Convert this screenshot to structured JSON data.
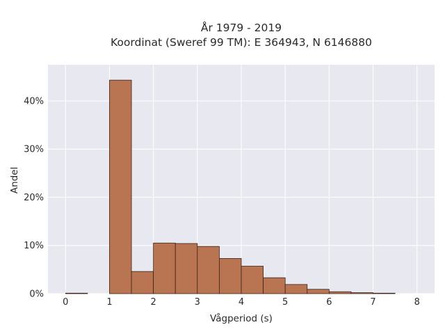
{
  "chart_data": {
    "type": "bar",
    "title_lines": [
      "År 1979 - 2019",
      "Koordinat (Sweref 99 TM): E 364943, N 6146880"
    ],
    "xlabel": "Vågperiod (s)",
    "ylabel": "Andel",
    "xlim": [
      -0.4,
      8.4
    ],
    "ylim": [
      0,
      0.475
    ],
    "x_ticks": [
      0,
      1,
      2,
      3,
      4,
      5,
      6,
      7,
      8
    ],
    "y_ticks": [
      0,
      0.1,
      0.2,
      0.3,
      0.4
    ],
    "y_tick_labels": [
      "0%",
      "10%",
      "20%",
      "30%",
      "40%"
    ],
    "bin_width": 0.5,
    "grid": true,
    "bins": [
      {
        "start": 0.0,
        "value": 0.001
      },
      {
        "start": 0.5,
        "value": 0.0
      },
      {
        "start": 1.0,
        "value": 0.443
      },
      {
        "start": 1.5,
        "value": 0.046
      },
      {
        "start": 2.0,
        "value": 0.105
      },
      {
        "start": 2.5,
        "value": 0.104
      },
      {
        "start": 3.0,
        "value": 0.098
      },
      {
        "start": 3.5,
        "value": 0.073
      },
      {
        "start": 4.0,
        "value": 0.057
      },
      {
        "start": 4.5,
        "value": 0.033
      },
      {
        "start": 5.0,
        "value": 0.019
      },
      {
        "start": 5.5,
        "value": 0.009
      },
      {
        "start": 6.0,
        "value": 0.004
      },
      {
        "start": 6.5,
        "value": 0.002
      },
      {
        "start": 7.0,
        "value": 0.001
      },
      {
        "start": 7.5,
        "value": 0.0
      }
    ],
    "colors": {
      "bar": "#b97551",
      "bar_edge": "#3a2418",
      "plot_bg": "#e8e8f1"
    }
  }
}
